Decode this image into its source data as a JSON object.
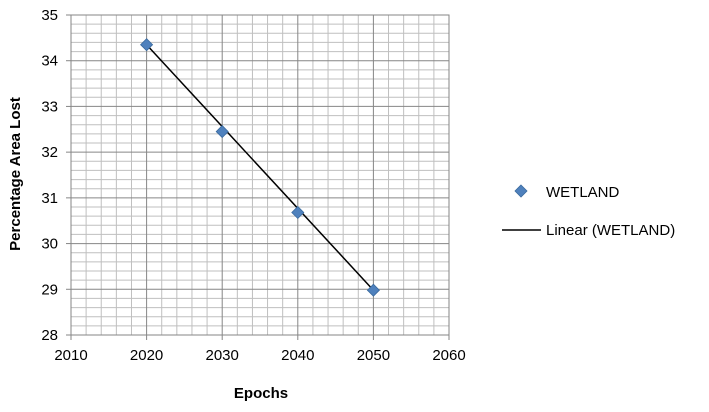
{
  "chart_data": {
    "type": "scatter",
    "xlabel": "Epochs",
    "ylabel": "Percentage Area Lost",
    "xlim": [
      2010,
      2060
    ],
    "ylim": [
      28,
      35
    ],
    "x_ticks": [
      "2010",
      "2020",
      "2030",
      "2040",
      "2050",
      "2060"
    ],
    "y_ticks": [
      "28",
      "29",
      "30",
      "31",
      "32",
      "33",
      "34",
      "35"
    ],
    "x_minor_step": 2,
    "y_minor_step": 0.2,
    "grid": true,
    "legend_position": "right",
    "series": [
      {
        "name": "WETLAND",
        "marker": "diamond",
        "color": "#4F81BD",
        "x": [
          2020,
          2030,
          2040,
          2050
        ],
        "y": [
          34.35,
          32.45,
          30.68,
          28.98
        ]
      }
    ],
    "trendline": {
      "name": "Linear (WETLAND)",
      "kind": "linear",
      "color": "#000000",
      "x": [
        2020,
        2050
      ],
      "y": [
        34.35,
        28.98
      ]
    }
  }
}
